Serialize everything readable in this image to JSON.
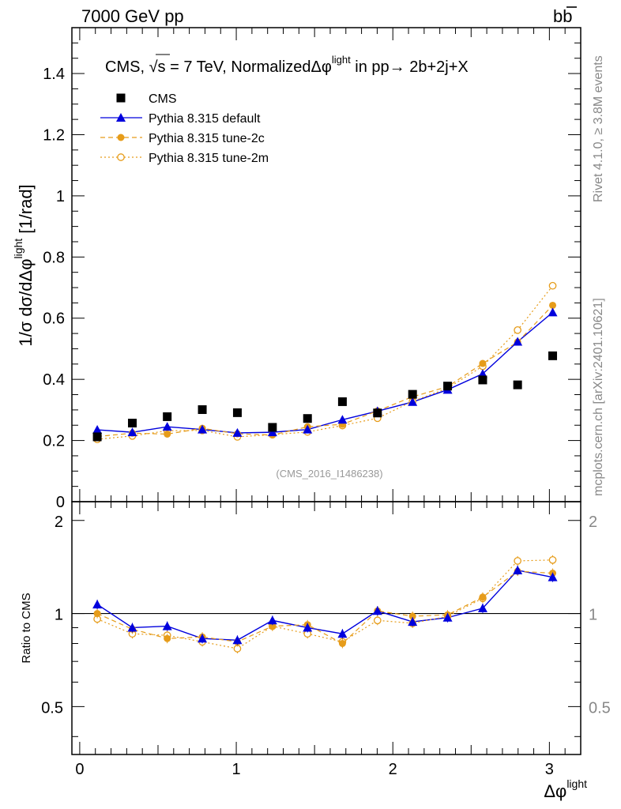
{
  "header": {
    "energy_label": "7000 GeV pp",
    "process_label": "bb",
    "process_bar": "b"
  },
  "side_labels": {
    "rivet": "Rivet 4.1.0, ≥ 3.8M events",
    "mcplots": "mcplots.cern.ch [arXiv:2401.10621]"
  },
  "colors": {
    "cms": "#000000",
    "default": "#0000dd",
    "tune2c": "#e69c1a",
    "tune2m": "#e69c1a"
  },
  "chart_data": [
    {
      "type": "scatter",
      "panel": "main",
      "title": {
        "prefix": "CMS, ",
        "sqrt": "√s",
        "mid": " = 7 TeV, NormalizedΔφ",
        "sup": "light",
        "suffix": " in pp→  2b+2j+X"
      },
      "ylabel": {
        "main": "1/σ dσ/dΔφ",
        "sup": "light",
        "unit": " [1/rad]"
      },
      "watermark": "(CMS_2016_I1486238)",
      "ylim": [
        0,
        1.55
      ],
      "xlim": [
        -0.05,
        3.2
      ],
      "yticks": [
        0,
        0.2,
        0.4,
        0.6,
        0.8,
        1,
        1.2,
        1.4
      ],
      "ytick_labels": [
        "0",
        "0.2",
        "0.4",
        "0.6",
        "0.8",
        "1",
        "1.2",
        "1.4"
      ],
      "legend": {
        "position": "top-left",
        "entries": [
          "CMS",
          "Pythia 8.315 default",
          "Pythia 8.315 tune-2c",
          "Pythia 8.315 tune-2m"
        ]
      },
      "x": [
        0.112,
        0.336,
        0.559,
        0.783,
        1.007,
        1.231,
        1.455,
        1.678,
        1.902,
        2.126,
        2.35,
        2.574,
        2.797,
        3.021
      ],
      "series": [
        {
          "name": "CMS",
          "style": "square",
          "values": [
            0.212,
            0.257,
            0.278,
            0.301,
            0.291,
            0.243,
            0.272,
            0.327,
            0.29,
            0.351,
            0.378,
            0.398,
            0.382,
            0.477
          ]
        },
        {
          "name": "Pythia 8.315 default",
          "style": "triangle",
          "values": [
            0.235,
            0.227,
            0.245,
            0.236,
            0.225,
            0.227,
            0.236,
            0.268,
            0.296,
            0.326,
            0.366,
            0.418,
            0.523,
            0.619
          ]
        },
        {
          "name": "Pythia 8.315 tune-2c",
          "style": "dot",
          "values": [
            0.213,
            0.224,
            0.221,
            0.24,
            0.222,
            0.218,
            0.245,
            0.253,
            0.297,
            0.343,
            0.376,
            0.452,
            0.522,
            0.642
          ]
        },
        {
          "name": "Pythia 8.315 tune-2m",
          "style": "circle",
          "values": [
            0.204,
            0.215,
            0.232,
            0.233,
            0.212,
            0.219,
            0.228,
            0.249,
            0.273,
            0.328,
            0.371,
            0.443,
            0.561,
            0.706
          ]
        }
      ]
    },
    {
      "type": "line",
      "panel": "ratio",
      "ylabel": "Ratio to CMS",
      "xlabel": {
        "main": "Δφ",
        "sup": "light"
      },
      "ylim": [
        0.35,
        2.3
      ],
      "xlim": [
        -0.05,
        3.2
      ],
      "reference_line": 1,
      "yticks": [
        0.5,
        1,
        2
      ],
      "ytick_labels": [
        "0.5",
        "1",
        "2"
      ],
      "xticks": [
        0,
        1,
        2,
        3
      ],
      "xtick_labels": [
        "0",
        "1",
        "2",
        "3"
      ],
      "x": [
        0.112,
        0.336,
        0.559,
        0.783,
        1.007,
        1.231,
        1.455,
        1.678,
        1.902,
        2.126,
        2.35,
        2.574,
        2.797,
        3.021
      ],
      "series": [
        {
          "name": "Pythia 8.315 default",
          "style": "triangle",
          "values": [
            1.07,
            0.9,
            0.91,
            0.83,
            0.82,
            0.95,
            0.9,
            0.86,
            1.02,
            0.94,
            0.97,
            1.04,
            1.38,
            1.31
          ]
        },
        {
          "name": "Pythia 8.315 tune-2c",
          "style": "dot",
          "values": [
            1.0,
            0.89,
            0.83,
            0.84,
            0.81,
            0.91,
            0.92,
            0.8,
            1.02,
            0.98,
            0.99,
            1.13,
            1.37,
            1.35
          ]
        },
        {
          "name": "Pythia 8.315 tune-2m",
          "style": "circle",
          "values": [
            0.96,
            0.86,
            0.85,
            0.81,
            0.77,
            0.91,
            0.86,
            0.81,
            0.95,
            0.93,
            0.98,
            1.12,
            1.48,
            1.49
          ]
        }
      ]
    }
  ]
}
